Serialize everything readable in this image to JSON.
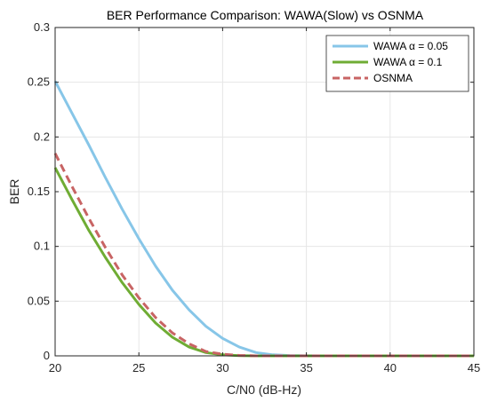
{
  "chart_data": {
    "type": "line",
    "title": "BER Performance Comparison: WAWA(Slow) vs OSNMA",
    "xlabel": "C/N0 (dB-Hz)",
    "ylabel": "BER",
    "xlim": [
      20,
      45
    ],
    "ylim": [
      0,
      0.3
    ],
    "xticks": [
      20,
      25,
      30,
      35,
      40,
      45
    ],
    "yticks": [
      0,
      0.05,
      0.1,
      0.15,
      0.2,
      0.25,
      0.3
    ],
    "xtick_labels": [
      "20",
      "25",
      "30",
      "35",
      "40",
      "45"
    ],
    "ytick_labels": [
      "0",
      "0.05",
      "0.1",
      "0.15",
      "0.2",
      "0.25",
      "0.3"
    ],
    "grid": true,
    "legend_position": "top-right",
    "x": [
      20,
      21,
      22,
      23,
      24,
      25,
      26,
      27,
      28,
      29,
      30,
      31,
      32,
      33,
      34,
      35,
      36,
      37,
      38,
      39,
      40,
      41,
      42,
      43,
      44,
      45
    ],
    "series": [
      {
        "name": "WAWA α = 0.05",
        "color": "#87c6e8",
        "dash": "solid",
        "values": [
          0.251,
          0.222,
          0.193,
          0.163,
          0.134,
          0.107,
          0.082,
          0.06,
          0.042,
          0.027,
          0.016,
          0.008,
          0.003,
          0.001,
          0.0003,
          0.0001,
          0,
          0,
          0,
          0,
          0,
          0,
          0,
          0,
          0,
          0
        ]
      },
      {
        "name": "WAWA α = 0.1",
        "color": "#6fac34",
        "dash": "solid",
        "values": [
          0.172,
          0.143,
          0.115,
          0.09,
          0.067,
          0.047,
          0.03,
          0.017,
          0.008,
          0.003,
          0.001,
          0.0002,
          0,
          0,
          0,
          0,
          0,
          0,
          0,
          0,
          0,
          0,
          0,
          0,
          0,
          0
        ]
      },
      {
        "name": "OSNMA",
        "color": "#c86464",
        "dash": "dashed",
        "values": [
          0.185,
          0.155,
          0.126,
          0.099,
          0.074,
          0.053,
          0.035,
          0.021,
          0.011,
          0.004,
          0.0015,
          0.0004,
          0,
          0,
          0,
          0,
          0,
          0,
          0,
          0,
          0,
          0,
          0,
          0,
          0,
          0
        ]
      }
    ]
  }
}
